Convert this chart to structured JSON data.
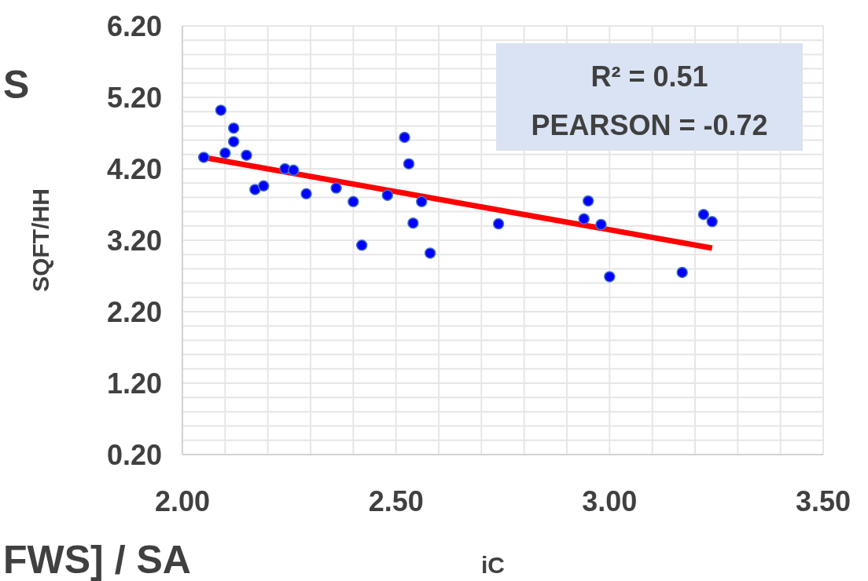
{
  "chart_data": {
    "type": "scatter",
    "ylabel": "SQFT/HH",
    "xlim": [
      2.0,
      3.5
    ],
    "xticks": [
      {
        "value": 2.0,
        "label": "2.00"
      },
      {
        "value": 2.1,
        "label": null
      },
      {
        "value": 2.2,
        "label": null
      },
      {
        "value": 2.3,
        "label": null
      },
      {
        "value": 2.4,
        "label": null
      },
      {
        "value": 2.5,
        "label": "2.50"
      },
      {
        "value": 2.6,
        "label": null
      },
      {
        "value": 2.7,
        "label": null
      },
      {
        "value": 2.8,
        "label": null
      },
      {
        "value": 2.9,
        "label": null
      },
      {
        "value": 3.0,
        "label": "3.00"
      },
      {
        "value": 3.1,
        "label": null
      },
      {
        "value": 3.2,
        "label": null
      },
      {
        "value": 3.3,
        "label": null
      },
      {
        "value": 3.4,
        "label": null
      },
      {
        "value": 3.5,
        "label": "3.50"
      }
    ],
    "ylim": [
      0.2,
      6.2
    ],
    "yticks": [
      {
        "value": 0.2,
        "label": "0.20"
      },
      {
        "value": 0.4,
        "label": null
      },
      {
        "value": 0.6,
        "label": null
      },
      {
        "value": 0.8,
        "label": null
      },
      {
        "value": 1.0,
        "label": null
      },
      {
        "value": 1.2,
        "label": "1.20"
      },
      {
        "value": 1.4,
        "label": null
      },
      {
        "value": 1.6,
        "label": null
      },
      {
        "value": 1.8,
        "label": null
      },
      {
        "value": 2.0,
        "label": null
      },
      {
        "value": 2.2,
        "label": "2.20"
      },
      {
        "value": 2.4,
        "label": null
      },
      {
        "value": 2.6,
        "label": null
      },
      {
        "value": 2.8,
        "label": null
      },
      {
        "value": 3.0,
        "label": null
      },
      {
        "value": 3.2,
        "label": "3.20"
      },
      {
        "value": 3.4,
        "label": null
      },
      {
        "value": 3.6,
        "label": null
      },
      {
        "value": 3.8,
        "label": null
      },
      {
        "value": 4.0,
        "label": null
      },
      {
        "value": 4.2,
        "label": "4.20"
      },
      {
        "value": 4.4,
        "label": null
      },
      {
        "value": 4.6,
        "label": null
      },
      {
        "value": 4.8,
        "label": null
      },
      {
        "value": 5.0,
        "label": null
      },
      {
        "value": 5.2,
        "label": "5.20"
      },
      {
        "value": 5.4,
        "label": null
      },
      {
        "value": 5.6,
        "label": null
      },
      {
        "value": 5.8,
        "label": null
      },
      {
        "value": 6.0,
        "label": null
      },
      {
        "value": 6.2,
        "label": "6.20"
      }
    ],
    "grid": true,
    "marker": "circle",
    "series": [
      {
        "type": "scatter",
        "color": "#0000ff",
        "x": [
          2.05,
          2.09,
          2.1,
          2.12,
          2.12,
          2.15,
          2.17,
          2.19,
          2.24,
          2.26,
          2.29,
          2.36,
          2.4,
          2.42,
          2.48,
          2.52,
          2.53,
          2.54,
          2.56,
          2.58,
          2.74,
          2.94,
          2.95,
          2.98,
          3.0,
          3.17,
          3.22,
          3.24
        ],
        "values": [
          4.36,
          5.02,
          4.42,
          4.77,
          4.58,
          4.39,
          3.91,
          3.96,
          4.2,
          4.18,
          3.85,
          3.93,
          3.74,
          3.13,
          3.83,
          4.64,
          4.27,
          3.44,
          3.74,
          3.02,
          3.43,
          3.5,
          3.75,
          3.42,
          2.69,
          2.75,
          3.56,
          3.46
        ]
      },
      {
        "type": "line",
        "color": "#ff0000",
        "marker": "none",
        "x": [
          2.05,
          3.24
        ],
        "values": [
          4.36,
          3.09
        ]
      }
    ],
    "annotations": [
      "R² = 0.51",
      "PEARSON = -0.72",
      "FWS] / SA",
      "iC",
      "S"
    ]
  }
}
